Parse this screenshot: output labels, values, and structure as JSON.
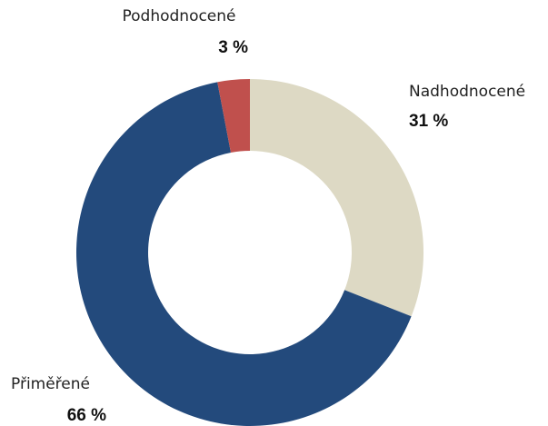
{
  "chart_data": {
    "type": "donut",
    "categories": [
      "Nadhodnocené",
      "Přiměřené",
      "Podhodnocené"
    ],
    "values": [
      31,
      66,
      3
    ],
    "value_labels": [
      "31 %",
      "66 %",
      "3 %"
    ],
    "colors": [
      "#ddd9c4",
      "#234a7c",
      "#c0504d"
    ]
  }
}
